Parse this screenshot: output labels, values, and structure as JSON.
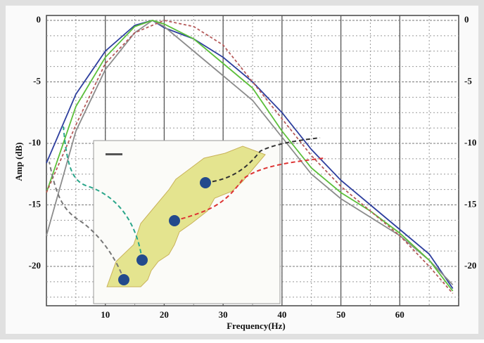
{
  "chart_data": {
    "type": "line",
    "x_label": "Frequency(Hz)",
    "y_label": "Amp (dB)",
    "x": [
      0,
      5,
      10,
      15,
      18,
      20,
      25,
      30,
      35,
      40,
      45,
      50,
      55,
      60,
      65,
      69
    ],
    "series": [
      {
        "color": "#2e3f9e",
        "dash": false,
        "values": [
          -11.6,
          -6,
          -2.5,
          -0.4,
          0,
          -0.6,
          -1.5,
          -3,
          -5,
          -7.5,
          -10.5,
          -13,
          -15,
          -17,
          -19,
          -21.8
        ]
      },
      {
        "color": "#8c8c8c",
        "dash": false,
        "values": [
          -17.5,
          -9,
          -4,
          -1,
          0,
          -0.5,
          -2.5,
          -4.5,
          -6.5,
          -9.5,
          -12.5,
          -14.5,
          -16,
          -17.5,
          -19.5,
          -21.5
        ]
      },
      {
        "color": "#5cbf3a",
        "dash": false,
        "values": [
          -14,
          -7,
          -3,
          -0.5,
          0,
          -0.3,
          -1.5,
          -3.5,
          -5.5,
          -9,
          -12,
          -14,
          -15.5,
          -17.3,
          -19.5,
          -22
        ]
      },
      {
        "color": "#b55a5a",
        "dash": true,
        "values": [
          -14,
          -8.5,
          -3.5,
          -1,
          -0.4,
          0,
          -0.5,
          -2,
          -5,
          -8,
          -11,
          -13.5,
          -15.5,
          -17.5,
          -20,
          -22.2
        ]
      }
    ],
    "xlim": [
      0,
      70
    ],
    "xticks": [
      10,
      20,
      30,
      40,
      50,
      60
    ],
    "ylim": [
      -23.2,
      0.4
    ],
    "yticks": [
      0,
      -5,
      -10,
      -15,
      -20
    ],
    "y2lim": [
      -23.2,
      0.4
    ],
    "y2ticks": [
      0,
      -5,
      -10,
      -15,
      -20
    ],
    "grid": true
  }
}
